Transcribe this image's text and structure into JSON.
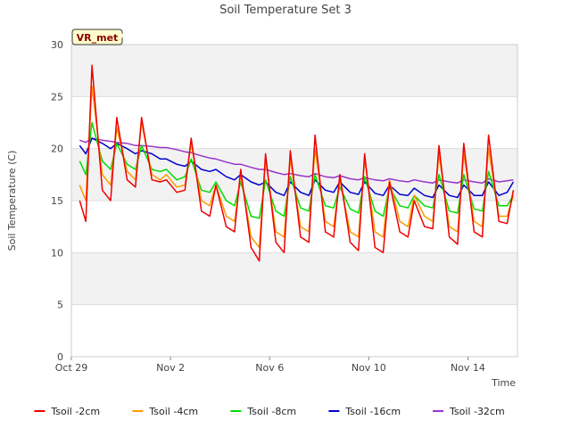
{
  "chart_data": {
    "type": "line",
    "title": "Soil Temperature Set 3",
    "xlabel": "Time",
    "ylabel": "Soil Temperature (C)",
    "badge": "VR_met",
    "ylim": [
      0,
      30
    ],
    "yticks": [
      0,
      5,
      10,
      15,
      20,
      25,
      30
    ],
    "xlim": [
      "2023-10-29",
      "2023-11-16"
    ],
    "xticks": [
      {
        "date": "2023-10-29",
        "label": "Oct 29"
      },
      {
        "date": "2023-11-02",
        "label": "Nov 2"
      },
      {
        "date": "2023-11-06",
        "label": "Nov 6"
      },
      {
        "date": "2023-11-10",
        "label": "Nov 10"
      },
      {
        "date": "2023-11-14",
        "label": "Nov 14"
      }
    ],
    "x": [
      "2023-10-29 08:00",
      "2023-10-29 14:00",
      "2023-10-29 20:00",
      "2023-10-30 06:00",
      "2023-10-30 14:00",
      "2023-10-30 20:00",
      "2023-10-31 06:00",
      "2023-10-31 14:00",
      "2023-10-31 20:00",
      "2023-11-01 06:00",
      "2023-11-01 14:00",
      "2023-11-01 20:00",
      "2023-11-02 06:00",
      "2023-11-02 14:00",
      "2023-11-02 20:00",
      "2023-11-03 06:00",
      "2023-11-03 14:00",
      "2023-11-03 20:00",
      "2023-11-04 06:00",
      "2023-11-04 14:00",
      "2023-11-04 20:00",
      "2023-11-05 06:00",
      "2023-11-05 14:00",
      "2023-11-05 20:00",
      "2023-11-06 06:00",
      "2023-11-06 14:00",
      "2023-11-06 20:00",
      "2023-11-07 06:00",
      "2023-11-07 14:00",
      "2023-11-07 20:00",
      "2023-11-08 06:00",
      "2023-11-08 14:00",
      "2023-11-08 20:00",
      "2023-11-09 06:00",
      "2023-11-09 14:00",
      "2023-11-09 20:00",
      "2023-11-10 06:00",
      "2023-11-10 14:00",
      "2023-11-10 20:00",
      "2023-11-11 06:00",
      "2023-11-11 14:00",
      "2023-11-11 20:00",
      "2023-11-12 06:00",
      "2023-11-12 14:00",
      "2023-11-12 20:00",
      "2023-11-13 06:00",
      "2023-11-13 14:00",
      "2023-11-13 20:00",
      "2023-11-14 06:00",
      "2023-11-14 14:00",
      "2023-11-14 20:00",
      "2023-11-15 06:00",
      "2023-11-15 14:00",
      "2023-11-15 20:00"
    ],
    "series": [
      {
        "name": "Tsoil -2cm",
        "color": "#ee0000",
        "values": [
          15.0,
          13.0,
          28.0,
          16.0,
          15.0,
          23.0,
          17.0,
          16.3,
          23.0,
          17.0,
          16.8,
          17.0,
          15.8,
          16.0,
          21.0,
          14.0,
          13.5,
          16.5,
          12.5,
          12.0,
          18.0,
          10.5,
          9.2,
          19.5,
          11.0,
          10.0,
          19.8,
          11.5,
          11.0,
          21.3,
          12.0,
          11.5,
          17.5,
          11.0,
          10.2,
          19.5,
          10.5,
          10.0,
          16.8,
          12.0,
          11.5,
          15.0,
          12.5,
          12.3,
          20.3,
          11.5,
          10.8,
          20.5,
          12.0,
          11.5,
          21.3,
          13.0,
          12.8,
          16.0
        ]
      },
      {
        "name": "Tsoil -4cm",
        "color": "#ff9900",
        "values": [
          16.5,
          15.0,
          26.0,
          17.5,
          16.5,
          22.0,
          17.8,
          17.0,
          22.5,
          17.5,
          17.0,
          17.5,
          16.3,
          16.5,
          20.5,
          15.0,
          14.5,
          16.5,
          13.5,
          13.0,
          17.5,
          11.5,
          10.5,
          19.0,
          12.0,
          11.5,
          19.0,
          12.5,
          12.0,
          20.0,
          13.0,
          12.5,
          17.0,
          12.0,
          11.5,
          19.0,
          12.0,
          11.5,
          17.0,
          13.0,
          12.5,
          15.5,
          13.5,
          13.0,
          19.5,
          12.5,
          12.0,
          19.5,
          13.0,
          12.5,
          20.0,
          13.5,
          13.5,
          15.5
        ]
      },
      {
        "name": "Tsoil -8cm",
        "color": "#00dd00",
        "values": [
          18.8,
          17.5,
          22.5,
          18.8,
          18.0,
          20.5,
          18.5,
          18.0,
          20.3,
          18.0,
          17.8,
          18.0,
          17.0,
          17.3,
          19.0,
          16.0,
          15.8,
          16.8,
          15.0,
          14.5,
          16.8,
          13.5,
          13.3,
          17.0,
          14.0,
          13.5,
          17.3,
          14.3,
          14.0,
          17.5,
          14.5,
          14.3,
          16.3,
          14.2,
          13.8,
          17.3,
          14.0,
          13.5,
          16.3,
          14.5,
          14.3,
          15.5,
          14.5,
          14.3,
          17.5,
          14.0,
          13.8,
          17.5,
          14.2,
          14.0,
          17.8,
          14.5,
          14.5,
          15.5
        ]
      },
      {
        "name": "Tsoil -16cm",
        "color": "#0000cc",
        "values": [
          20.3,
          19.5,
          21.0,
          20.5,
          20.0,
          20.5,
          20.0,
          19.5,
          19.8,
          19.5,
          19.0,
          19.0,
          18.5,
          18.3,
          18.8,
          18.0,
          17.8,
          18.0,
          17.3,
          17.0,
          17.5,
          16.8,
          16.5,
          16.8,
          15.8,
          15.5,
          16.8,
          15.8,
          15.5,
          17.0,
          16.0,
          15.8,
          16.8,
          15.8,
          15.6,
          16.8,
          15.7,
          15.5,
          16.5,
          15.6,
          15.5,
          16.2,
          15.5,
          15.3,
          16.5,
          15.5,
          15.3,
          16.5,
          15.5,
          15.5,
          16.8,
          15.5,
          15.8,
          16.8
        ]
      },
      {
        "name": "Tsoil -32cm",
        "color": "#9933cc",
        "values": [
          20.8,
          20.6,
          21.0,
          20.8,
          20.7,
          20.6,
          20.5,
          20.3,
          20.3,
          20.2,
          20.1,
          20.1,
          19.9,
          19.7,
          19.6,
          19.3,
          19.1,
          19.0,
          18.7,
          18.5,
          18.5,
          18.2,
          18.0,
          18.0,
          17.7,
          17.5,
          17.6,
          17.4,
          17.3,
          17.6,
          17.3,
          17.2,
          17.4,
          17.1,
          17.0,
          17.2,
          17.0,
          16.9,
          17.1,
          16.9,
          16.8,
          17.0,
          16.8,
          16.7,
          17.0,
          16.8,
          16.7,
          17.0,
          16.8,
          16.7,
          17.1,
          16.8,
          16.9,
          17.0
        ]
      }
    ]
  }
}
